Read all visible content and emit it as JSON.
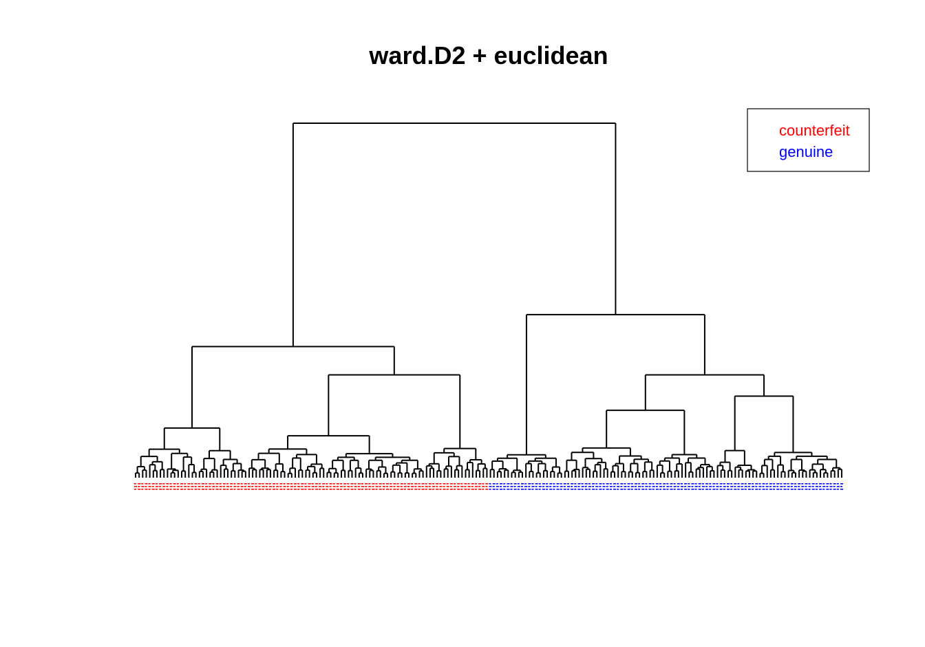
{
  "chart_data": {
    "type": "dendrogram",
    "title": "ward.D2 + euclidean",
    "xlabel": "",
    "ylabel": "",
    "axes_shown": false,
    "leaf_labels_legible": false,
    "legend": {
      "position": "top-right",
      "entries": [
        {
          "label": "counterfeit",
          "color": "#ff0000"
        },
        {
          "label": "genuine",
          "color": "#0000ff"
        }
      ]
    },
    "linkage": "ward.D2",
    "distance": "euclidean",
    "leaf_groups": [
      {
        "group": "counterfeit",
        "color": "#ff0000",
        "leaf_count": 100
      },
      {
        "group": "genuine",
        "color": "#0000ff",
        "leaf_count": 100
      }
    ],
    "merge_heights_top": [
      {
        "node": "root",
        "height": 100
      },
      {
        "node": "genuine-cluster",
        "height": 46
      },
      {
        "node": "counterfeit-cluster",
        "height": 37
      },
      {
        "node": "counterfeit-right",
        "height": 29
      },
      {
        "node": "genuine-right",
        "height": 29
      },
      {
        "node": "genuine-right-b",
        "height": 23
      },
      {
        "node": "genuine-right-a",
        "height": 19
      },
      {
        "node": "genuine-left",
        "height": 16
      },
      {
        "node": "counterfeit-left",
        "height": 14
      }
    ]
  }
}
